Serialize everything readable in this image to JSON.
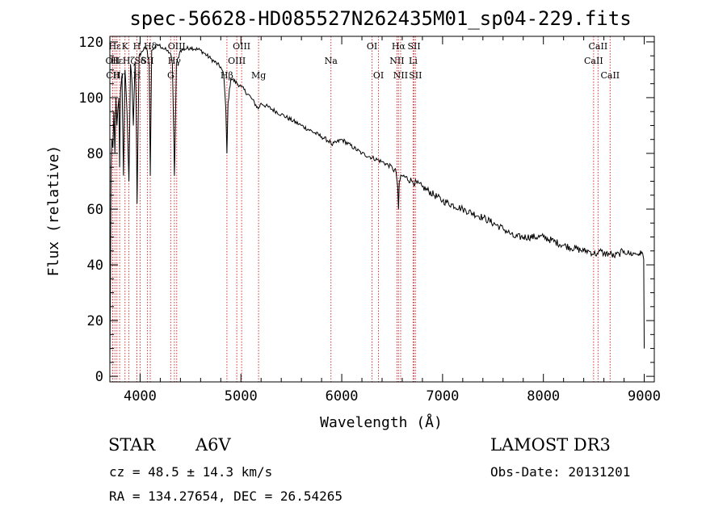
{
  "chart_data": {
    "type": "line",
    "title": "spec-56628-HD085527N262435M01_sp04-229.fits",
    "xlabel": "Wavelength (Å)",
    "ylabel": "Flux (relative)",
    "xlim": [
      3700,
      9100
    ],
    "ylim": [
      -2,
      122
    ],
    "xticks": [
      4000,
      5000,
      6000,
      7000,
      8000,
      9000
    ],
    "yticks": [
      0,
      20,
      40,
      60,
      80,
      100,
      120
    ],
    "grid": false,
    "series": [
      {
        "name": "spectrum",
        "x": [
          3700,
          3705,
          3712,
          3720,
          3730,
          3740,
          3750,
          3760,
          3770,
          3780,
          3790,
          3797,
          3805,
          3820,
          3835,
          3850,
          3870,
          3889,
          3905,
          3920,
          3933,
          3950,
          3960,
          3970,
          3990,
          4010,
          4040,
          4070,
          4090,
          4101,
          4115,
          4140,
          4180,
          4220,
          4260,
          4300,
          4320,
          4335,
          4340,
          4345,
          4360,
          4400,
          4500,
          4600,
          4700,
          4800,
          4830,
          4850,
          4861,
          4872,
          4900,
          5000,
          5100,
          5172,
          5200,
          5400,
          5600,
          5800,
          5890,
          5900,
          6000,
          6200,
          6400,
          6500,
          6540,
          6555,
          6563,
          6571,
          6600,
          6700,
          6800,
          7000,
          7200,
          7400,
          7600,
          7680,
          7700,
          8000,
          8200,
          8400,
          8450,
          8500,
          8542,
          8560,
          8600,
          8662,
          8700,
          8750,
          8800,
          8850,
          8900,
          8950,
          8970,
          8985,
          8995,
          9000
        ],
        "y": [
          3,
          30,
          75,
          85,
          82,
          95,
          80,
          100,
          90,
          96,
          100,
          75,
          102,
          108,
          72,
          110,
          95,
          70,
          112,
          105,
          90,
          113,
          100,
          62,
          115,
          116,
          118,
          117,
          112,
          72,
          117,
          118,
          119,
          118,
          117,
          116,
          112,
          85,
          72,
          80,
          112,
          117,
          118,
          117,
          114,
          111,
          108,
          96,
          80,
          98,
          107,
          104,
          100,
          96,
          98,
          94,
          90,
          86,
          84,
          83,
          85,
          80,
          77,
          75,
          73,
          68,
          60,
          70,
          72,
          70,
          68,
          63,
          60,
          57,
          53,
          51,
          50,
          50,
          47,
          45,
          45,
          44,
          44,
          45,
          44,
          44,
          43,
          44,
          45,
          44,
          44,
          44,
          44,
          44,
          42,
          10
        ]
      }
    ],
    "lines": [
      {
        "label": "Hε",
        "x": 3750,
        "row": 1
      },
      {
        "label": "OII",
        "x": 3727,
        "row": 2
      },
      {
        "label": "CII",
        "x": 3730,
        "row": 3
      },
      {
        "label": "Hε",
        "x": 3770,
        "row": 2
      },
      {
        "label": "Hη",
        "x": 3797,
        "row": 3
      },
      {
        "label": "K",
        "x": 3850,
        "row": 1
      },
      {
        "label": "Hζ",
        "x": 3889,
        "row": 2
      },
      {
        "label": "H",
        "x": 3968,
        "row": 3
      },
      {
        "label": "H",
        "x": 3968,
        "row": 1
      },
      {
        "label": "Sδ",
        "x": 4000,
        "row": 2
      },
      {
        "label": "Hδ",
        "x": 4101,
        "row": 1
      },
      {
        "label": "SII",
        "x": 4072,
        "row": 2
      },
      {
        "label": "Hγ",
        "x": 4340,
        "row": 2
      },
      {
        "label": "G",
        "x": 4304,
        "row": 3
      },
      {
        "label": "OIII",
        "x": 4363,
        "row": 1
      },
      {
        "label": "Hβ",
        "x": 4861,
        "row": 3
      },
      {
        "label": "OIII",
        "x": 5007,
        "row": 1
      },
      {
        "label": "OIII",
        "x": 4959,
        "row": 2
      },
      {
        "label": "Mg",
        "x": 5175,
        "row": 3
      },
      {
        "label": "Na",
        "x": 5893,
        "row": 2
      },
      {
        "label": "OI",
        "x": 6300,
        "row": 1
      },
      {
        "label": "OI",
        "x": 6364,
        "row": 3
      },
      {
        "label": "Hα",
        "x": 6563,
        "row": 1
      },
      {
        "label": "NII",
        "x": 6548,
        "row": 2
      },
      {
        "label": "NII",
        "x": 6584,
        "row": 3
      },
      {
        "label": "SII",
        "x": 6717,
        "row": 1
      },
      {
        "label": "Li",
        "x": 6708,
        "row": 2
      },
      {
        "label": "SII",
        "x": 6731,
        "row": 3
      },
      {
        "label": "CaII",
        "x": 8542,
        "row": 1
      },
      {
        "label": "CaII",
        "x": 8498,
        "row": 2
      },
      {
        "label": "CaII",
        "x": 8662,
        "row": 3
      }
    ]
  },
  "info": {
    "class": "STAR",
    "subclass": "A6V",
    "survey": "LAMOST DR3",
    "cz": "cz = 48.5 ± 14.3 km/s",
    "obs_date": "Obs-Date: 20131201",
    "coords": "RA = 134.27654, DEC =  26.54265"
  }
}
